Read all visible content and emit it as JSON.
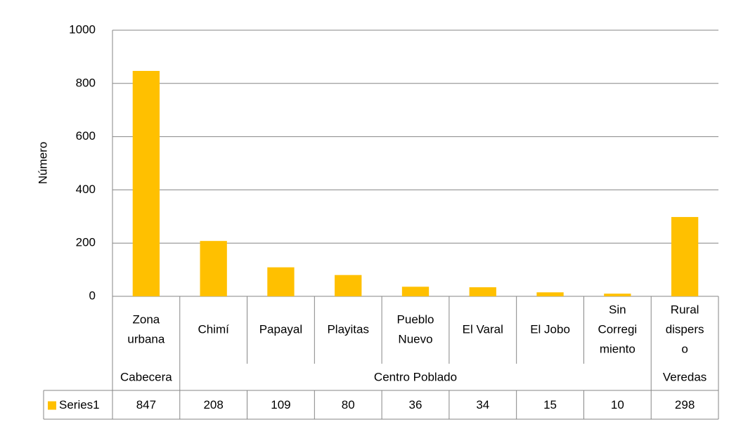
{
  "chart_data": {
    "type": "bar",
    "y_label": "Número",
    "categories": [
      [
        "Zona",
        "urbana"
      ],
      [
        "Chimí"
      ],
      [
        "Papayal"
      ],
      [
        "Playitas"
      ],
      [
        "Pueblo",
        "Nuevo"
      ],
      [
        "El Varal"
      ],
      [
        "El Jobo"
      ],
      [
        "Sin",
        "Corregi",
        "miento"
      ],
      [
        "Rural",
        "dispers",
        "o"
      ]
    ],
    "groups": [
      {
        "name": "Cabecera",
        "count": 1
      },
      {
        "name": "Centro Poblado",
        "count": 7
      },
      {
        "name": "Veredas",
        "count": 1
      }
    ],
    "series": [
      {
        "name": "Series1",
        "color": "#ffc000",
        "values": [
          847,
          208,
          109,
          80,
          36,
          34,
          15,
          10,
          298
        ]
      }
    ],
    "ylim": [
      0,
      1000
    ],
    "yticks": [
      0,
      200,
      400,
      600,
      800,
      1000
    ],
    "grid": true
  }
}
